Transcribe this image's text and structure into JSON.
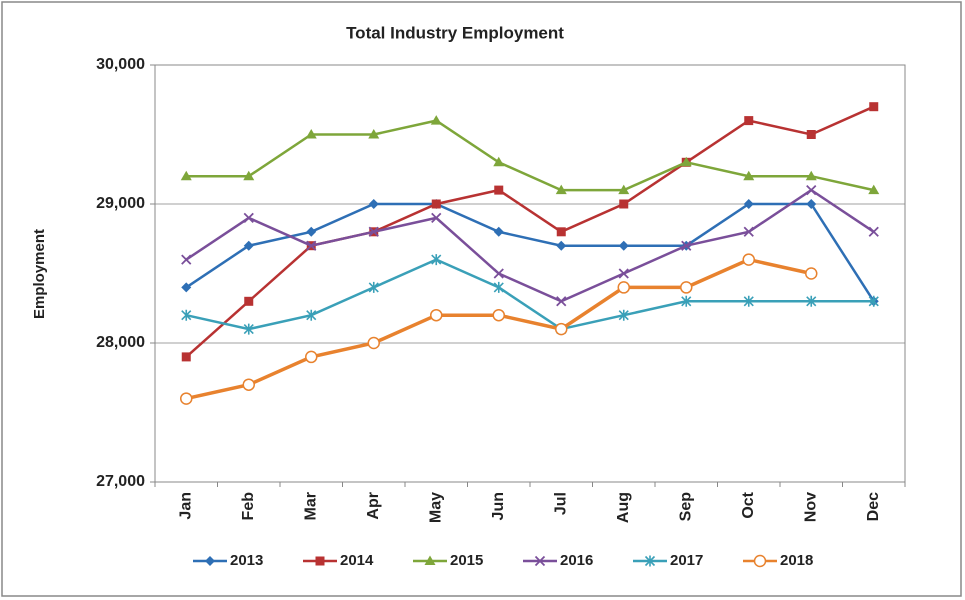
{
  "chart_data": {
    "type": "line",
    "title": "Total Industry Employment",
    "y_label": "Employment",
    "categories": [
      "Jan",
      "Feb",
      "Mar",
      "Apr",
      "May",
      "Jun",
      "Jul",
      "Aug",
      "Sep",
      "Oct",
      "Nov",
      "Dec"
    ],
    "series": [
      {
        "name": "2013",
        "color": "#2e6fb5",
        "marker": "diamond",
        "values": [
          28400,
          28700,
          28800,
          29000,
          29000,
          28800,
          28700,
          28700,
          28700,
          29000,
          29000,
          28300
        ]
      },
      {
        "name": "2014",
        "color": "#b83232",
        "marker": "square",
        "values": [
          27900,
          28300,
          28700,
          28800,
          29000,
          29100,
          28800,
          29000,
          29300,
          29600,
          29500,
          29700
        ]
      },
      {
        "name": "2015",
        "color": "#7ea63a",
        "marker": "triangle",
        "values": [
          29200,
          29200,
          29500,
          29500,
          29600,
          29300,
          29100,
          29100,
          29300,
          29200,
          29200,
          29100
        ]
      },
      {
        "name": "2016",
        "color": "#7a4f9a",
        "marker": "x",
        "values": [
          28600,
          28900,
          28700,
          28800,
          28900,
          28500,
          28300,
          28500,
          28700,
          28800,
          29100,
          28800
        ]
      },
      {
        "name": "2017",
        "color": "#3aa0b8",
        "marker": "star",
        "values": [
          28200,
          28100,
          28200,
          28400,
          28600,
          28400,
          28100,
          28200,
          28300,
          28300,
          28300,
          28300
        ]
      },
      {
        "name": "2018",
        "color": "#e8822e",
        "marker": "open-circle",
        "values": [
          27600,
          27700,
          27900,
          28000,
          28200,
          28200,
          28100,
          28400,
          28400,
          28600,
          28500,
          null
        ]
      }
    ],
    "ylim": [
      27000,
      30000
    ],
    "yticks": [
      {
        "value": 27000,
        "label": "27,000"
      },
      {
        "value": 28000,
        "label": "28,000"
      },
      {
        "value": 29000,
        "label": "29,000"
      },
      {
        "value": 30000,
        "label": "30,000"
      }
    ],
    "grid": true,
    "legend": "bottom"
  }
}
